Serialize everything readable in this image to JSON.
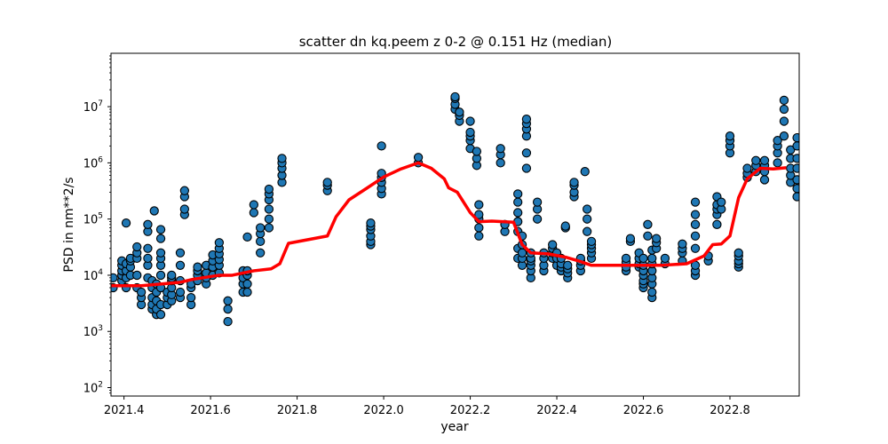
{
  "chart_data": {
    "type": "scatter",
    "title": "scatter dn kq.peem z 0-2 @ 0.151 Hz (median)",
    "xlabel": "year",
    "ylabel": "PSD in nm**2/s",
    "xlim": [
      2021.37,
      2022.96
    ],
    "ylim_log10": [
      1.85,
      7.95
    ],
    "yscale": "log",
    "grid": false,
    "x_ticks": [
      "2021.4",
      "2021.6",
      "2021.8",
      "2022.0",
      "2022.2",
      "2022.4",
      "2022.6",
      "2022.8"
    ],
    "y_ticks": [
      {
        "base": "10",
        "exp": "2"
      },
      {
        "base": "10",
        "exp": "3"
      },
      {
        "base": "10",
        "exp": "4"
      },
      {
        "base": "10",
        "exp": "5"
      },
      {
        "base": "10",
        "exp": "6"
      },
      {
        "base": "10",
        "exp": "7"
      }
    ],
    "colors": {
      "points": "#1f77b4",
      "point_edge": "#000000",
      "median_line": "#ff0000"
    },
    "clusters": [
      {
        "x": 2021.375,
        "y": [
          6000,
          9000
        ]
      },
      {
        "x": 2021.395,
        "y": [
          8000,
          10000,
          12000,
          15000,
          18000
        ]
      },
      {
        "x": 2021.405,
        "y": [
          6000,
          9000,
          12000,
          16000,
          85000
        ]
      },
      {
        "x": 2021.415,
        "y": [
          10000,
          14000,
          18000,
          20000
        ]
      },
      {
        "x": 2021.43,
        "y": [
          6000,
          10000,
          20000,
          25000,
          32000
        ]
      },
      {
        "x": 2021.44,
        "y": [
          3000,
          4000,
          5000
        ]
      },
      {
        "x": 2021.455,
        "y": [
          9000,
          15000,
          20000,
          30000,
          60000,
          80000
        ]
      },
      {
        "x": 2021.465,
        "y": [
          2500,
          3000,
          4000,
          6000,
          8000
        ]
      },
      {
        "x": 2021.47,
        "y": [
          140000
        ]
      },
      {
        "x": 2021.475,
        "y": [
          2000,
          2500,
          3500,
          5000,
          7000
        ]
      },
      {
        "x": 2021.485,
        "y": [
          2000,
          3000,
          6000,
          10000,
          15000,
          20000,
          25000,
          45000,
          65000
        ]
      },
      {
        "x": 2021.5,
        "y": [
          3000,
          4000,
          5000
        ]
      },
      {
        "x": 2021.51,
        "y": [
          3500,
          4500,
          6000,
          8000,
          9000,
          10000
        ]
      },
      {
        "x": 2021.53,
        "y": [
          4000,
          5000,
          8000,
          15000,
          25000
        ]
      },
      {
        "x": 2021.54,
        "y": [
          120000,
          150000,
          250000,
          320000
        ]
      },
      {
        "x": 2021.555,
        "y": [
          3000,
          4000,
          6000,
          7000
        ]
      },
      {
        "x": 2021.57,
        "y": [
          8000,
          10000,
          12000,
          14000
        ]
      },
      {
        "x": 2021.59,
        "y": [
          7000,
          9000,
          11000,
          15000
        ]
      },
      {
        "x": 2021.605,
        "y": [
          10000,
          14000,
          18000,
          23000
        ]
      },
      {
        "x": 2021.62,
        "y": [
          11000,
          15000,
          19000,
          24000,
          30000,
          38000
        ]
      },
      {
        "x": 2021.64,
        "y": [
          1500,
          2500,
          3500
        ]
      },
      {
        "x": 2021.675,
        "y": [
          5000,
          7000,
          9000,
          12000
        ]
      },
      {
        "x": 2021.685,
        "y": [
          5000,
          7000,
          10000,
          12000,
          48000
        ]
      },
      {
        "x": 2021.7,
        "y": [
          130000,
          180000
        ]
      },
      {
        "x": 2021.715,
        "y": [
          25000,
          40000,
          55000,
          70000
        ]
      },
      {
        "x": 2021.735,
        "y": [
          70000,
          100000,
          150000,
          220000,
          280000,
          340000
        ]
      },
      {
        "x": 2021.765,
        "y": [
          450000,
          600000,
          800000,
          1000000,
          1200000
        ]
      },
      {
        "x": 2021.87,
        "y": [
          320000,
          400000,
          450000
        ]
      },
      {
        "x": 2021.97,
        "y": [
          35000,
          40000,
          50000,
          65000,
          75000,
          85000
        ]
      },
      {
        "x": 2021.995,
        "y": [
          280000,
          350000,
          450000,
          550000,
          650000,
          2000000
        ]
      },
      {
        "x": 2022.08,
        "y": [
          1000000,
          1250000
        ]
      },
      {
        "x": 2022.165,
        "y": [
          9000000,
          11000000,
          14000000,
          15000000
        ]
      },
      {
        "x": 2022.175,
        "y": [
          5500000,
          7000000,
          8000000
        ]
      },
      {
        "x": 2022.2,
        "y": [
          1800000,
          2500000,
          3000000,
          3500000,
          5500000
        ]
      },
      {
        "x": 2022.215,
        "y": [
          900000,
          1200000,
          1600000
        ]
      },
      {
        "x": 2022.22,
        "y": [
          50000,
          70000,
          100000,
          120000,
          180000
        ]
      },
      {
        "x": 2022.27,
        "y": [
          1000000,
          1400000,
          1800000
        ]
      },
      {
        "x": 2022.28,
        "y": [
          60000,
          80000
        ]
      },
      {
        "x": 2022.31,
        "y": [
          20000,
          30000,
          60000,
          90000,
          130000,
          200000,
          280000
        ]
      },
      {
        "x": 2022.32,
        "y": [
          15000,
          20000,
          25000,
          35000,
          50000
        ]
      },
      {
        "x": 2022.33,
        "y": [
          800000,
          1500000,
          3000000,
          4000000,
          5000000,
          6000000
        ]
      },
      {
        "x": 2022.34,
        "y": [
          9000,
          12000,
          15000,
          18000,
          20000,
          25000
        ]
      },
      {
        "x": 2022.355,
        "y": [
          100000,
          150000,
          200000
        ]
      },
      {
        "x": 2022.37,
        "y": [
          12000,
          15000,
          20000,
          25000
        ]
      },
      {
        "x": 2022.39,
        "y": [
          20000,
          25000,
          30000,
          35000
        ]
      },
      {
        "x": 2022.4,
        "y": [
          15000,
          20000,
          25000
        ]
      },
      {
        "x": 2022.41,
        "y": [
          12000,
          14000,
          16000,
          20000
        ]
      },
      {
        "x": 2022.42,
        "y": [
          70000,
          75000
        ]
      },
      {
        "x": 2022.425,
        "y": [
          9000,
          11000,
          13000,
          15000
        ]
      },
      {
        "x": 2022.44,
        "y": [
          250000,
          300000,
          400000,
          450000
        ]
      },
      {
        "x": 2022.455,
        "y": [
          12000,
          15000,
          18000,
          20000
        ]
      },
      {
        "x": 2022.465,
        "y": [
          700000
        ]
      },
      {
        "x": 2022.47,
        "y": [
          60000,
          100000,
          150000
        ]
      },
      {
        "x": 2022.48,
        "y": [
          20000,
          25000,
          30000,
          35000,
          40000
        ]
      },
      {
        "x": 2022.56,
        "y": [
          12000,
          14000,
          17000,
          20000
        ]
      },
      {
        "x": 2022.57,
        "y": [
          40000,
          45000
        ]
      },
      {
        "x": 2022.59,
        "y": [
          14000,
          16000,
          20000,
          25000
        ]
      },
      {
        "x": 2022.6,
        "y": [
          6000,
          7000,
          8000,
          10000,
          12000,
          15000,
          20000
        ]
      },
      {
        "x": 2022.61,
        "y": [
          80000,
          50000
        ]
      },
      {
        "x": 2022.62,
        "y": [
          4000,
          5000,
          7000,
          9000,
          12000,
          16000,
          20000,
          28000
        ]
      },
      {
        "x": 2022.63,
        "y": [
          30000,
          38000,
          45000
        ]
      },
      {
        "x": 2022.65,
        "y": [
          16000,
          20000
        ]
      },
      {
        "x": 2022.69,
        "y": [
          18000,
          25000,
          30000,
          36000
        ]
      },
      {
        "x": 2022.72,
        "y": [
          10000,
          12000,
          15000,
          30000,
          50000,
          80000,
          120000,
          200000
        ]
      },
      {
        "x": 2022.75,
        "y": [
          18000,
          22000
        ]
      },
      {
        "x": 2022.77,
        "y": [
          80000,
          120000,
          150000,
          180000,
          250000
        ]
      },
      {
        "x": 2022.78,
        "y": [
          150000,
          200000
        ]
      },
      {
        "x": 2022.8,
        "y": [
          1500000,
          2000000,
          2500000,
          3000000
        ]
      },
      {
        "x": 2022.82,
        "y": [
          14000,
          16000,
          18000,
          22000,
          25000
        ]
      },
      {
        "x": 2022.84,
        "y": [
          550000,
          650000,
          800000
        ]
      },
      {
        "x": 2022.86,
        "y": [
          700000,
          900000,
          1100000
        ]
      },
      {
        "x": 2022.88,
        "y": [
          500000,
          700000,
          900000,
          1100000
        ]
      },
      {
        "x": 2022.91,
        "y": [
          1000000,
          1500000,
          2000000,
          2500000
        ]
      },
      {
        "x": 2022.925,
        "y": [
          3000000,
          5500000,
          9000000,
          13000000
        ]
      },
      {
        "x": 2022.94,
        "y": [
          450000,
          600000,
          800000,
          1200000,
          1700000
        ]
      },
      {
        "x": 2022.955,
        "y": [
          250000,
          350000,
          500000,
          800000,
          1200000,
          2000000,
          2800000
        ]
      }
    ],
    "median": {
      "x": [
        2021.37,
        2021.44,
        2021.47,
        2021.53,
        2021.56,
        2021.62,
        2021.65,
        2021.7,
        2021.74,
        2021.76,
        2021.78,
        2021.87,
        2021.89,
        2021.92,
        2021.96,
        2022.0,
        2022.04,
        2022.08,
        2022.11,
        2022.14,
        2022.15,
        2022.17,
        2022.2,
        2022.22,
        2022.25,
        2022.3,
        2022.32,
        2022.34,
        2022.38,
        2022.42,
        2022.45,
        2022.48,
        2022.55,
        2022.64,
        2022.7,
        2022.74,
        2022.76,
        2022.78,
        2022.8,
        2022.82,
        2022.84,
        2022.87,
        2022.9,
        2022.93
      ],
      "y": [
        6500,
        6500,
        6800,
        7500,
        8500,
        10000,
        10000,
        12000,
        13000,
        16000,
        37000,
        50000,
        110000,
        220000,
        350000,
        560000,
        780000,
        1000000,
        800000,
        520000,
        360000,
        300000,
        130000,
        90000,
        92000,
        88000,
        35000,
        25000,
        24000,
        21000,
        18000,
        15000,
        15000,
        15000,
        16000,
        22000,
        35000,
        36000,
        50000,
        240000,
        520000,
        800000,
        780000,
        820000
      ]
    }
  }
}
